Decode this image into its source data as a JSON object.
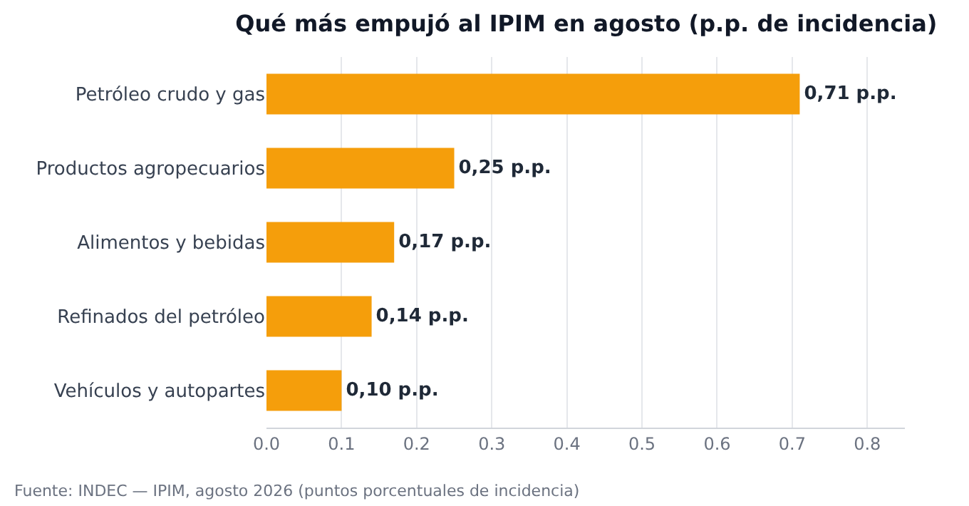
{
  "chart_data": {
    "type": "bar",
    "orientation": "horizontal",
    "title": "Qué más empujó al IPIM en agosto (p.p. de incidencia)",
    "categories": [
      "Petróleo crudo y gas",
      "Productos agropecuarios",
      "Alimentos y bebidas",
      "Refinados del petróleo",
      "Vehículos y autopartes"
    ],
    "values": [
      0.71,
      0.25,
      0.17,
      0.14,
      0.1
    ],
    "value_labels": [
      "0,71 p.p.",
      "0,25 p.p.",
      "0,17 p.p.",
      "0,14 p.p.",
      "0,10 p.p."
    ],
    "color": "#f59e0b",
    "xlim": [
      0,
      0.85
    ],
    "xticks": [
      {
        "value": 0,
        "label": "0.0"
      },
      {
        "value": 0.1,
        "label": "0.1"
      },
      {
        "value": 0.2,
        "label": "0.2"
      },
      {
        "value": 0.3,
        "label": "0.3"
      },
      {
        "value": 0.4,
        "label": "0.4"
      },
      {
        "value": 0.5,
        "label": "0.5"
      },
      {
        "value": 0.6,
        "label": "0.6"
      },
      {
        "value": 0.7,
        "label": "0.7"
      },
      {
        "value": 0.8,
        "label": "0.8"
      }
    ],
    "grid": "x",
    "annotations": [
      "Fuente: INDEC — IPIM, agosto 2026 (puntos porcentuales de incidencia)"
    ]
  }
}
